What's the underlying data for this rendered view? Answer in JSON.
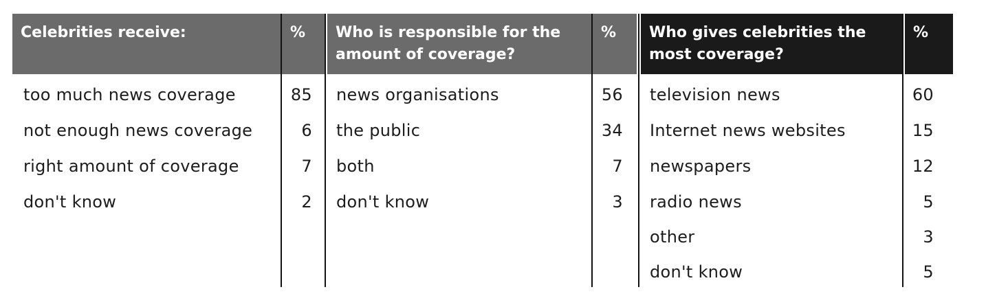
{
  "tables": [
    {
      "header": "Celebrities receive:",
      "pct_header": "%",
      "rows": [
        {
          "label": "too much news coverage",
          "value": "85"
        },
        {
          "label": "not enough news coverage",
          "value": "6"
        },
        {
          "label": "right amount of coverage",
          "value": "7"
        },
        {
          "label": "don't know",
          "value": "2"
        }
      ]
    },
    {
      "header": "Who is responsible for the amount of coverage?",
      "pct_header": "%",
      "rows": [
        {
          "label": "news organisations",
          "value": "56"
        },
        {
          "label": "the public",
          "value": "34"
        },
        {
          "label": "both",
          "value": "7"
        },
        {
          "label": "don't know",
          "value": "3"
        }
      ]
    },
    {
      "header": "Who gives celebrities the most coverage?",
      "pct_header": "%",
      "rows": [
        {
          "label": "television news",
          "value": "60"
        },
        {
          "label": "Internet news websites",
          "value": "15"
        },
        {
          "label": "newspapers",
          "value": "12"
        },
        {
          "label": "radio news",
          "value": "5"
        },
        {
          "label": "other",
          "value": "3"
        },
        {
          "label": "don't know",
          "value": "5"
        }
      ]
    }
  ],
  "colors": {
    "header_gray": "#6b6b6b",
    "header_dark": "#1a1a1a",
    "rule": "#111111"
  }
}
